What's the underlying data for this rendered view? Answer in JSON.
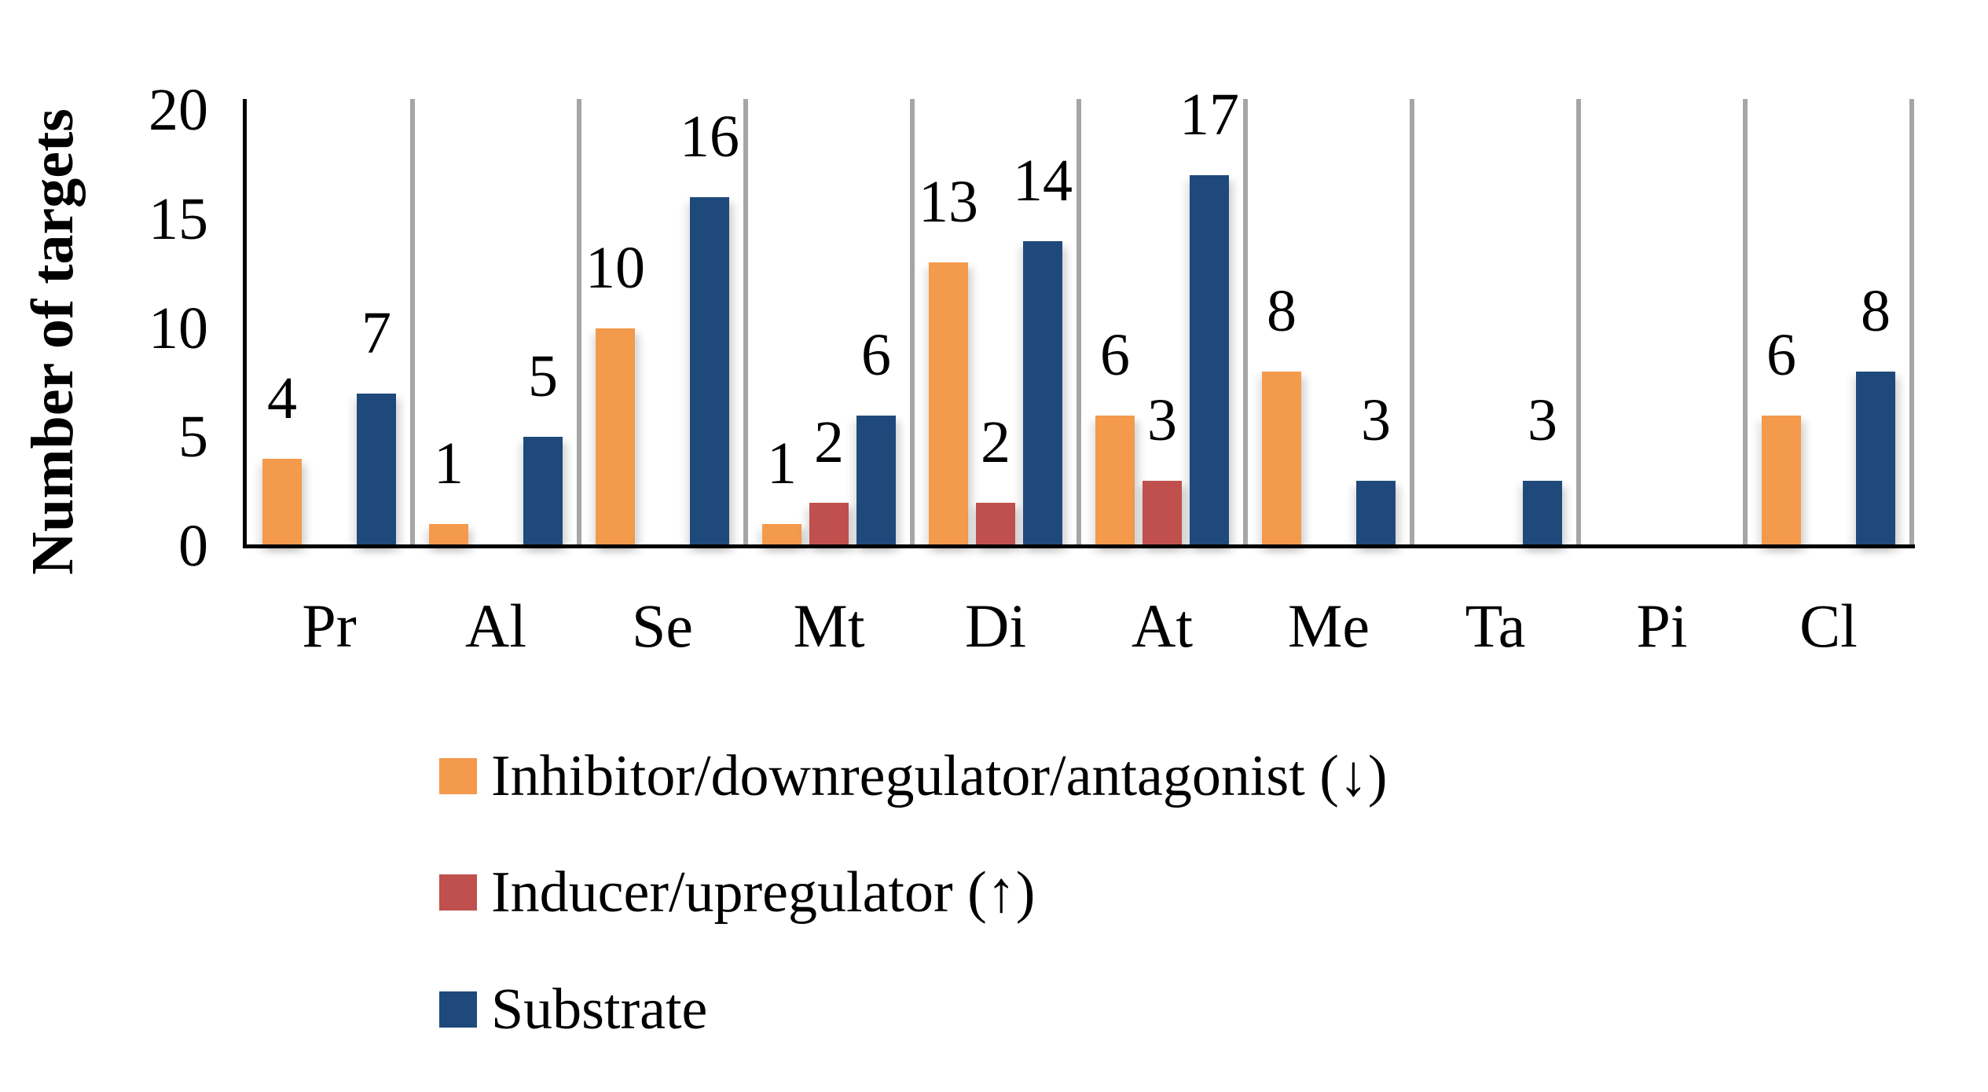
{
  "chart_data": {
    "type": "bar",
    "title": "",
    "ylabel": "Number of targets",
    "xlabel": "",
    "ylim": [
      0,
      20
    ],
    "yticks": [
      0,
      5,
      10,
      15,
      20
    ],
    "categories": [
      "Pr",
      "Al",
      "Se",
      "Mt",
      "Di",
      "At",
      "Me",
      "Ta",
      "Pi",
      "Cl"
    ],
    "series": [
      {
        "name": "Inhibitor/downregulator/antagonist (↓)",
        "color": "#F49A4D",
        "values": [
          4,
          1,
          10,
          1,
          13,
          6,
          8,
          null,
          null,
          6
        ]
      },
      {
        "name": "Inducer/upregulator (↑)",
        "color": "#C0504D",
        "values": [
          null,
          null,
          null,
          2,
          2,
          3,
          null,
          null,
          null,
          null
        ]
      },
      {
        "name": "Substrate",
        "color": "#1F497B",
        "values": [
          7,
          5,
          16,
          6,
          14,
          17,
          3,
          3,
          null,
          8
        ]
      }
    ],
    "grid": "vertical category separators",
    "legend_position": "bottom-left",
    "axis_color": "#000000",
    "separator_color": "#A6A6A6",
    "data_labels": "above bars"
  }
}
